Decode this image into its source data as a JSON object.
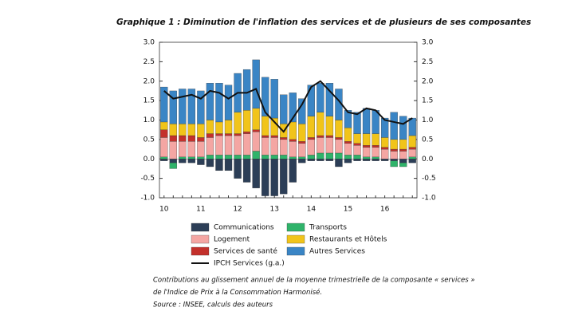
{
  "chart_data": {
    "type": "bar",
    "title": "Graphique 1 : Diminution de l'inflation des services et de plusieurs de ses composantes",
    "categories": [
      "10",
      null,
      null,
      null,
      "11",
      null,
      null,
      null,
      "12",
      null,
      null,
      null,
      "13",
      null,
      null,
      null,
      "14",
      null,
      null,
      null,
      "15",
      null,
      null,
      null,
      "16",
      null,
      null,
      null
    ],
    "series": [
      {
        "name": "Communications",
        "color": "#2c3e57",
        "values": [
          -0.05,
          -0.1,
          -0.1,
          -0.1,
          -0.15,
          -0.2,
          -0.3,
          -0.3,
          -0.5,
          -0.6,
          -0.75,
          -0.95,
          -0.95,
          -0.9,
          -0.6,
          -0.1,
          -0.05,
          -0.05,
          -0.05,
          -0.2,
          -0.1,
          -0.05,
          -0.05,
          -0.05,
          -0.05,
          -0.05,
          -0.1,
          -0.1
        ]
      },
      {
        "name": "Transports",
        "color": "#2fb36a",
        "values": [
          0.05,
          -0.15,
          0.05,
          0.05,
          0.05,
          0.1,
          0.1,
          0.1,
          0.1,
          0.1,
          0.2,
          0.1,
          0.1,
          0.1,
          0.05,
          0.05,
          0.1,
          0.15,
          0.15,
          0.15,
          0.1,
          0.1,
          0.05,
          0.05,
          0,
          -0.15,
          -0.1,
          0.05
        ]
      },
      {
        "name": "Logement",
        "color": "#f4a6a3",
        "values": [
          0.5,
          0.45,
          0.4,
          0.4,
          0.4,
          0.45,
          0.5,
          0.5,
          0.5,
          0.55,
          0.5,
          0.45,
          0.45,
          0.4,
          0.4,
          0.35,
          0.4,
          0.4,
          0.4,
          0.35,
          0.3,
          0.25,
          0.25,
          0.25,
          0.25,
          0.2,
          0.2,
          0.2
        ]
      },
      {
        "name": "Services de santé",
        "color": "#c3302b",
        "values": [
          0.2,
          0.15,
          0.15,
          0.15,
          0.1,
          0.1,
          0.05,
          0.05,
          0.05,
          0.05,
          0.05,
          0.05,
          0.05,
          0.05,
          0.05,
          0.05,
          0.05,
          0.05,
          0.05,
          0.05,
          0.05,
          0.05,
          0.05,
          0.05,
          0.05,
          0.05,
          0.05,
          0.05
        ]
      },
      {
        "name": "Restaurants et Hôtels",
        "color": "#f1c41a",
        "values": [
          0.2,
          0.3,
          0.3,
          0.3,
          0.35,
          0.35,
          0.3,
          0.35,
          0.55,
          0.55,
          0.55,
          0.5,
          0.45,
          0.35,
          0.45,
          0.45,
          0.55,
          0.6,
          0.5,
          0.45,
          0.35,
          0.25,
          0.3,
          0.3,
          0.25,
          0.25,
          0.25,
          0.3
        ]
      },
      {
        "name": "Autres Services",
        "color": "#3a85c5",
        "values": [
          0.9,
          0.85,
          0.9,
          0.9,
          0.85,
          0.95,
          1.0,
          0.9,
          1.0,
          1.05,
          1.25,
          1.0,
          1.0,
          0.75,
          0.75,
          0.65,
          0.8,
          0.75,
          0.85,
          0.8,
          0.45,
          0.55,
          0.65,
          0.6,
          0.5,
          0.7,
          0.6,
          0.45
        ]
      },
      {
        "name": "IPCH Services (g.a.)",
        "color": "#111111",
        "type": "line",
        "values": [
          1.75,
          1.55,
          1.6,
          1.65,
          1.55,
          1.75,
          1.7,
          1.55,
          1.7,
          1.7,
          1.8,
          1.2,
          0.95,
          0.7,
          1.05,
          1.4,
          1.85,
          2.0,
          1.75,
          1.5,
          1.2,
          1.15,
          1.3,
          1.25,
          1.0,
          0.95,
          0.9,
          1.05
        ]
      }
    ],
    "ylim": [
      -1,
      3
    ],
    "yticks": [
      {
        "value": -1,
        "label": "-1.0"
      },
      {
        "value": -0.5,
        "label": "-0.5"
      },
      {
        "value": 0,
        "label": "0.0"
      },
      {
        "value": 0.5,
        "label": "0.5"
      },
      {
        "value": 1,
        "label": "1.0"
      },
      {
        "value": 1.5,
        "label": "1.5"
      },
      {
        "value": 2,
        "label": "2.0"
      },
      {
        "value": 2.5,
        "label": "2.5"
      },
      {
        "value": 3,
        "label": "3.0"
      }
    ],
    "y2lim": [
      -1,
      3
    ],
    "y2ticks": [
      {
        "value": -1,
        "label": "-1.0"
      },
      {
        "value": -0.5,
        "label": "-0.5"
      },
      {
        "value": 0,
        "label": "0.0"
      },
      {
        "value": 0.5,
        "label": "0.5"
      },
      {
        "value": 1,
        "label": "1.0"
      },
      {
        "value": 1.5,
        "label": "1.5"
      },
      {
        "value": 2,
        "label": "2.0"
      },
      {
        "value": 2.5,
        "label": "2.5"
      },
      {
        "value": 3,
        "label": "3.0"
      }
    ],
    "notes": [
      "Contributions au glissement annuel de la moyenne trimestrielle de la composante « services »",
      "de l'Indice de Prix à la Consommation Harmonisé.",
      "Source : INSEE, calculs des auteurs"
    ]
  }
}
